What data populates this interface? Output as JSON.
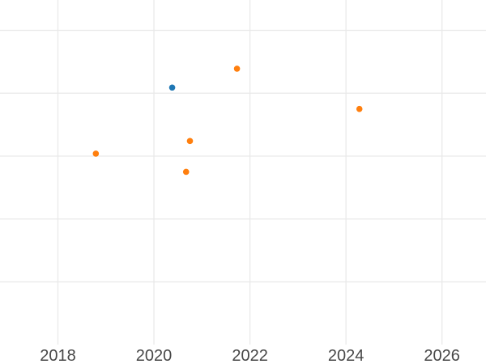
{
  "chart_data": {
    "type": "scatter",
    "title": "",
    "xlabel": "",
    "ylabel": "",
    "x_ticks": [
      {
        "year": 2018,
        "label": "2018"
      },
      {
        "year": 2020,
        "label": "2020"
      },
      {
        "year": 2022,
        "label": "2022"
      },
      {
        "year": 2024,
        "label": "2024"
      },
      {
        "year": 2026,
        "label": "2026"
      }
    ],
    "x_range_visible": [
      2016.8,
      2026.9
    ],
    "y_range_visible_units": [
      0,
      5.48
    ],
    "y_gridline_levels": [
      1,
      2,
      3,
      4,
      5
    ],
    "y_axis_note": "y-axis tick labels not visible in screenshot; y values are measured in gridline units above the plot bottom",
    "grid": true,
    "legend_position": "none",
    "marker_diameter_px": 7.6,
    "series": [
      {
        "name": "blue-series",
        "color": "#1f77b4",
        "points": [
          {
            "x": 2020.38,
            "y": 4.09
          }
        ]
      },
      {
        "name": "orange-series",
        "color": "#ff7f0e",
        "points": [
          {
            "x": 2018.79,
            "y": 3.04
          },
          {
            "x": 2020.67,
            "y": 2.75
          },
          {
            "x": 2020.75,
            "y": 3.24
          },
          {
            "x": 2021.73,
            "y": 4.39
          },
          {
            "x": 2024.28,
            "y": 3.75
          }
        ]
      }
    ],
    "colors": {
      "background": "#ffffff",
      "gridline": "#e9e9e9",
      "tick_label": "#474747"
    }
  }
}
